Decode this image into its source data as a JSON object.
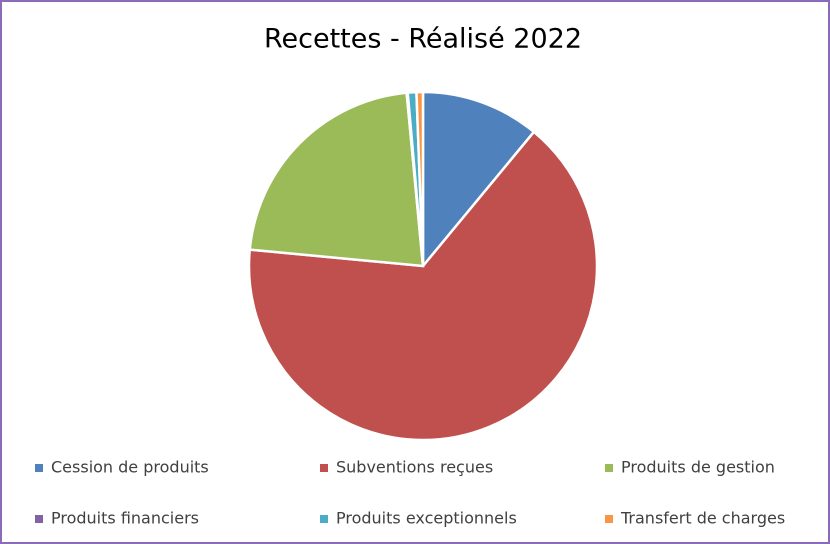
{
  "chart_data": {
    "type": "pie",
    "title": "Recettes - Réalisé 2022",
    "categories": [
      "Cession de produits",
      "Subventions reçues",
      "Produits de gestion",
      "Produits financiers",
      "Produits exceptionnels",
      "Transfert de charges"
    ],
    "values": [
      11,
      65.5,
      22,
      0.1,
      0.8,
      0.6
    ],
    "colors": [
      "#4f81bd",
      "#c0504d",
      "#9bbb59",
      "#8064a2",
      "#4bacc6",
      "#f79646"
    ],
    "legend": "bottom"
  }
}
